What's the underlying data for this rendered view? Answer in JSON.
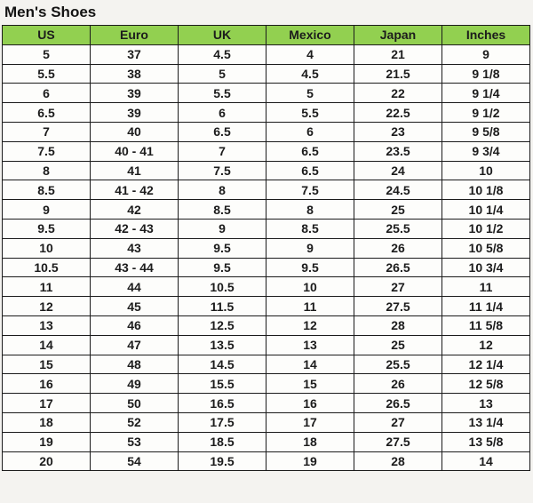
{
  "page": {
    "title": "Men's Shoes"
  },
  "colors": {
    "header_bg": "#92D050",
    "cell_bg": "#fdfdfb",
    "page_bg": "#f4f3f0",
    "border": "#1b1b1b",
    "text": "#1c1c1c"
  },
  "chart_data": {
    "type": "table",
    "title": "Men's Shoes",
    "columns": [
      "US",
      "Euro",
      "UK",
      "Mexico",
      "Japan",
      "Inches"
    ],
    "rows": [
      [
        "5",
        "37",
        "4.5",
        "4",
        "21",
        "9"
      ],
      [
        "5.5",
        "38",
        "5",
        "4.5",
        "21.5",
        "9 1/8"
      ],
      [
        "6",
        "39",
        "5.5",
        "5",
        "22",
        "9 1/4"
      ],
      [
        "6.5",
        "39",
        "6",
        "5.5",
        "22.5",
        "9 1/2"
      ],
      [
        "7",
        "40",
        "6.5",
        "6",
        "23",
        "9 5/8"
      ],
      [
        "7.5",
        "40 - 41",
        "7",
        "6.5",
        "23.5",
        "9 3/4"
      ],
      [
        "8",
        "41",
        "7.5",
        "6.5",
        "24",
        "10"
      ],
      [
        "8.5",
        "41 - 42",
        "8",
        "7.5",
        "24.5",
        "10 1/8"
      ],
      [
        "9",
        "42",
        "8.5",
        "8",
        "25",
        "10 1/4"
      ],
      [
        "9.5",
        "42 - 43",
        "9",
        "8.5",
        "25.5",
        "10 1/2"
      ],
      [
        "10",
        "43",
        "9.5",
        "9",
        "26",
        "10 5/8"
      ],
      [
        "10.5",
        "43 - 44",
        "9.5",
        "9.5",
        "26.5",
        "10 3/4"
      ],
      [
        "11",
        "44",
        "10.5",
        "10",
        "27",
        "11"
      ],
      [
        "12",
        "45",
        "11.5",
        "11",
        "27.5",
        "11 1/4"
      ],
      [
        "13",
        "46",
        "12.5",
        "12",
        "28",
        "11 5/8"
      ],
      [
        "14",
        "47",
        "13.5",
        "13",
        "25",
        "12"
      ],
      [
        "15",
        "48",
        "14.5",
        "14",
        "25.5",
        "12 1/4"
      ],
      [
        "16",
        "49",
        "15.5",
        "15",
        "26",
        "12 5/8"
      ],
      [
        "17",
        "50",
        "16.5",
        "16",
        "26.5",
        "13"
      ],
      [
        "18",
        "52",
        "17.5",
        "17",
        "27",
        "13 1/4"
      ],
      [
        "19",
        "53",
        "18.5",
        "18",
        "27.5",
        "13 5/8"
      ],
      [
        "20",
        "54",
        "19.5",
        "19",
        "28",
        "14"
      ]
    ]
  }
}
